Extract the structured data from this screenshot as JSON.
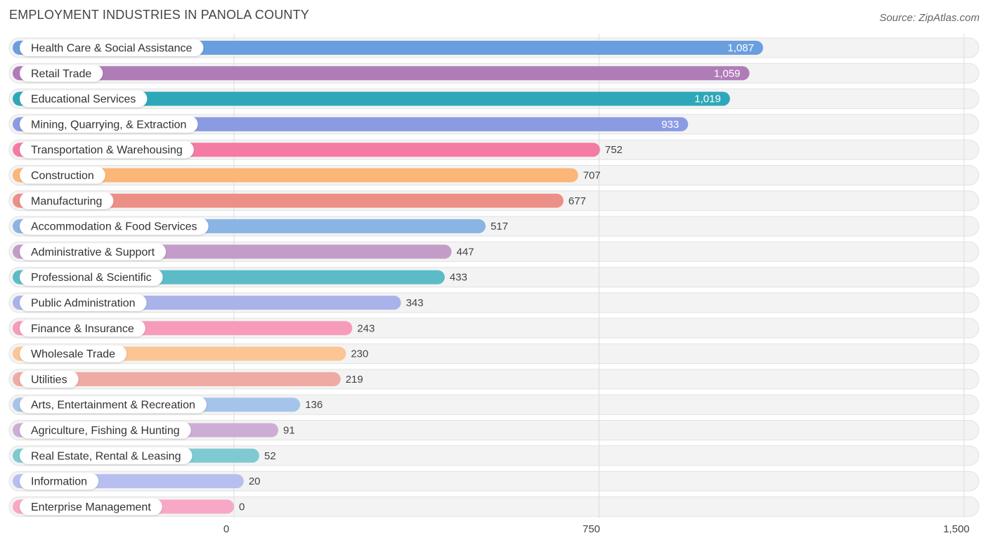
{
  "title": "EMPLOYMENT INDUSTRIES IN PANOLA COUNTY",
  "source": "Source: ZipAtlas.com",
  "chart_data": {
    "type": "bar",
    "orientation": "horizontal",
    "title": "EMPLOYMENT INDUSTRIES IN PANOLA COUNTY",
    "xlim": [
      0,
      1500
    ],
    "xticks": [
      0,
      750,
      1500
    ],
    "xtick_labels": [
      "0",
      "750",
      "1,500"
    ],
    "grid": true,
    "categories": [
      "Health Care & Social Assistance",
      "Retail Trade",
      "Educational Services",
      "Mining, Quarrying, & Extraction",
      "Transportation & Warehousing",
      "Construction",
      "Manufacturing",
      "Accommodation & Food Services",
      "Administrative & Support",
      "Professional & Scientific",
      "Public Administration",
      "Finance & Insurance",
      "Wholesale Trade",
      "Utilities",
      "Arts, Entertainment & Recreation",
      "Agriculture, Fishing & Hunting",
      "Real Estate, Rental & Leasing",
      "Information",
      "Enterprise Management"
    ],
    "values": [
      1087,
      1059,
      1019,
      933,
      752,
      707,
      677,
      517,
      447,
      433,
      343,
      243,
      230,
      219,
      136,
      91,
      52,
      20,
      0
    ],
    "value_labels": [
      "1,087",
      "1,059",
      "1,019",
      "933",
      "752",
      "707",
      "677",
      "517",
      "447",
      "433",
      "343",
      "243",
      "230",
      "219",
      "136",
      "91",
      "52",
      "20",
      "0"
    ],
    "colors": [
      "#6a9fdf",
      "#b07cb8",
      "#2ea8b8",
      "#8b9be3",
      "#f47ba3",
      "#fbb678",
      "#ec8f87",
      "#8ab4e6",
      "#c39cc8",
      "#5bbcc8",
      "#a9b3ea",
      "#f79bbb",
      "#fcc593",
      "#f0aaa4",
      "#a5c4ea",
      "#cdadd6",
      "#7fcad2",
      "#b7bff0",
      "#f8a8c6"
    ]
  }
}
